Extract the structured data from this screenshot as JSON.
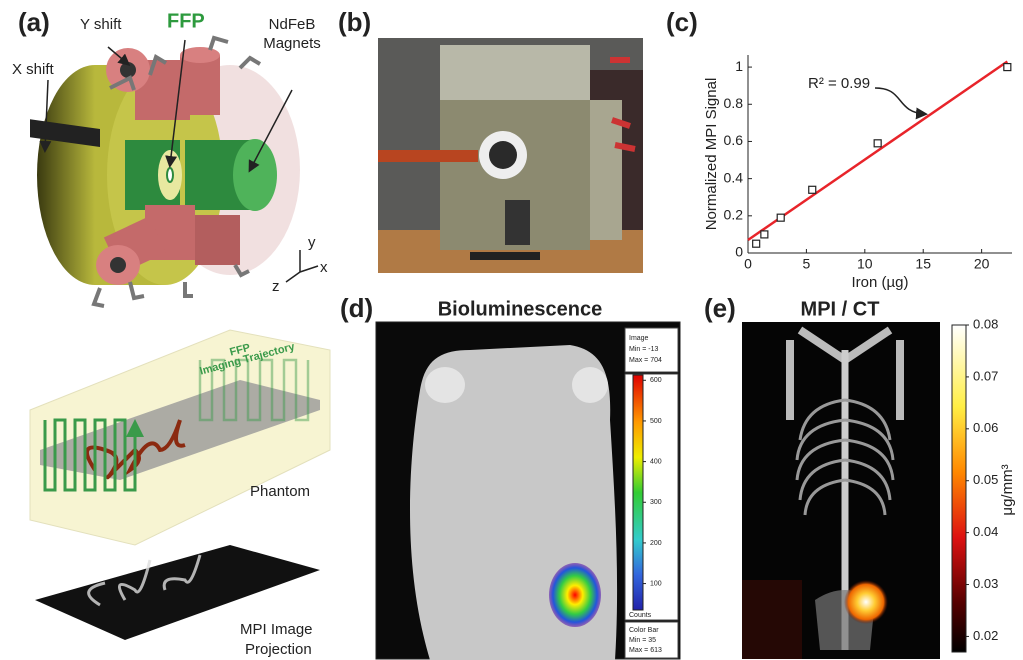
{
  "panel_labels": [
    "(a)",
    "(b)",
    "(c)",
    "(d)",
    "(e)"
  ],
  "panel_a": {
    "y_shift": "Y shift",
    "ffp": "FFP",
    "magnets": [
      "NdFeB",
      "Magnets"
    ],
    "x_shift": "X shift",
    "axis_y": "y",
    "axis_z": "z",
    "axis_x": "x",
    "trajectory": [
      "FFP",
      "Imaging Trajectory"
    ],
    "phantom": "Phantom",
    "projection": [
      "MPI Image",
      "Projection"
    ]
  },
  "panel_d": {
    "title": "Bioluminescence",
    "image_box": [
      "Image",
      "Min = -13",
      "Max = 704"
    ],
    "colorbar_box": [
      "Color Bar",
      "Min = 35",
      "Max = 613"
    ],
    "units": "Counts",
    "colorbar": {
      "lim": [
        35,
        613
      ],
      "ticks": [
        100,
        200,
        300,
        400,
        500,
        600
      ]
    }
  },
  "panel_e": {
    "title": "MPI / CT",
    "colorbar": {
      "label": "μg/mm³",
      "lim": [
        0.017,
        0.08
      ],
      "ticks": [
        0.02,
        0.03,
        0.04,
        0.05,
        0.06,
        0.07,
        0.08
      ]
    }
  },
  "chart_data": {
    "type": "scatter",
    "xlabel": "Iron (µg)",
    "ylabel": "Normalized MPI Signal",
    "annotation": "R² = 0.99",
    "x": [
      0.7,
      1.4,
      2.8,
      5.5,
      11.1,
      22.2
    ],
    "values": [
      0.05,
      0.1,
      0.19,
      0.34,
      0.59,
      1.0
    ],
    "color": "#222222",
    "fit": {
      "x": [
        0,
        22.2
      ],
      "values": [
        0.07,
        1.03
      ],
      "color": "#e8242a"
    },
    "xlim": [
      0,
      22.6
    ],
    "ylim": [
      0,
      1.065
    ],
    "xticks": [
      0,
      5,
      10,
      15,
      20
    ],
    "yticks": [
      0,
      0.2,
      0.4,
      0.6,
      0.8,
      1
    ]
  }
}
